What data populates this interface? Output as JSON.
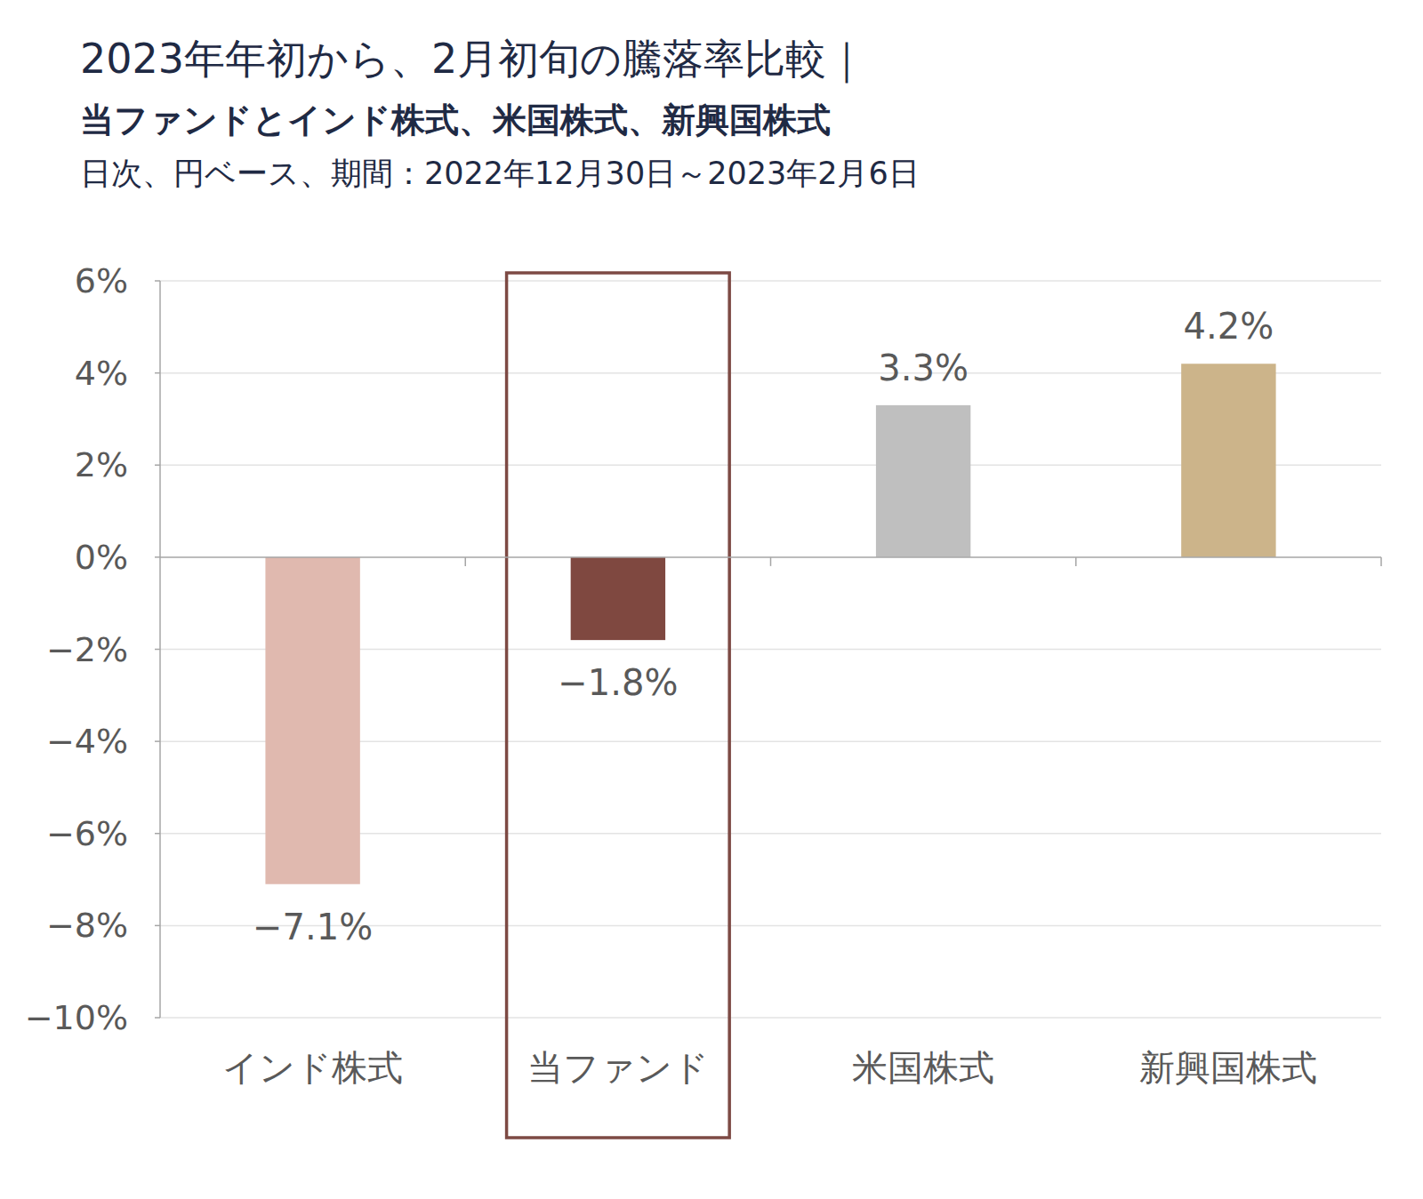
{
  "chart_data": {
    "type": "bar",
    "title": "2023年年初から、2月初旬の騰落率比較｜",
    "subtitle": [
      "当ファンドとインド株式、米国株式、新興国株式",
      "日次、円ベース、期間：2022年12月30日～2023年2月6日"
    ],
    "categories": [
      "インド株式",
      "当ファンド",
      "米国株式",
      "新興国株式"
    ],
    "values": [
      -7.1,
      -1.8,
      3.3,
      4.2
    ],
    "value_labels": [
      "−7.1%",
      "−1.8%",
      "3.3%",
      "4.2%"
    ],
    "colors": [
      "#e0b9af",
      "#7f4840",
      "#bfbfbf",
      "#ccb48a"
    ],
    "ylim": [
      -10,
      6
    ],
    "yticks": [
      {
        "value": -10,
        "label": "−10%"
      },
      {
        "value": -8,
        "label": "−8%"
      },
      {
        "value": -6,
        "label": "−6%"
      },
      {
        "value": -4,
        "label": "−4%"
      },
      {
        "value": -2,
        "label": "−2%"
      },
      {
        "value": 0,
        "label": "0%"
      },
      {
        "value": 2,
        "label": "2%"
      },
      {
        "value": 4,
        "label": "4%"
      },
      {
        "value": 6,
        "label": "6%"
      }
    ],
    "grid": true,
    "data_labels": true
  }
}
